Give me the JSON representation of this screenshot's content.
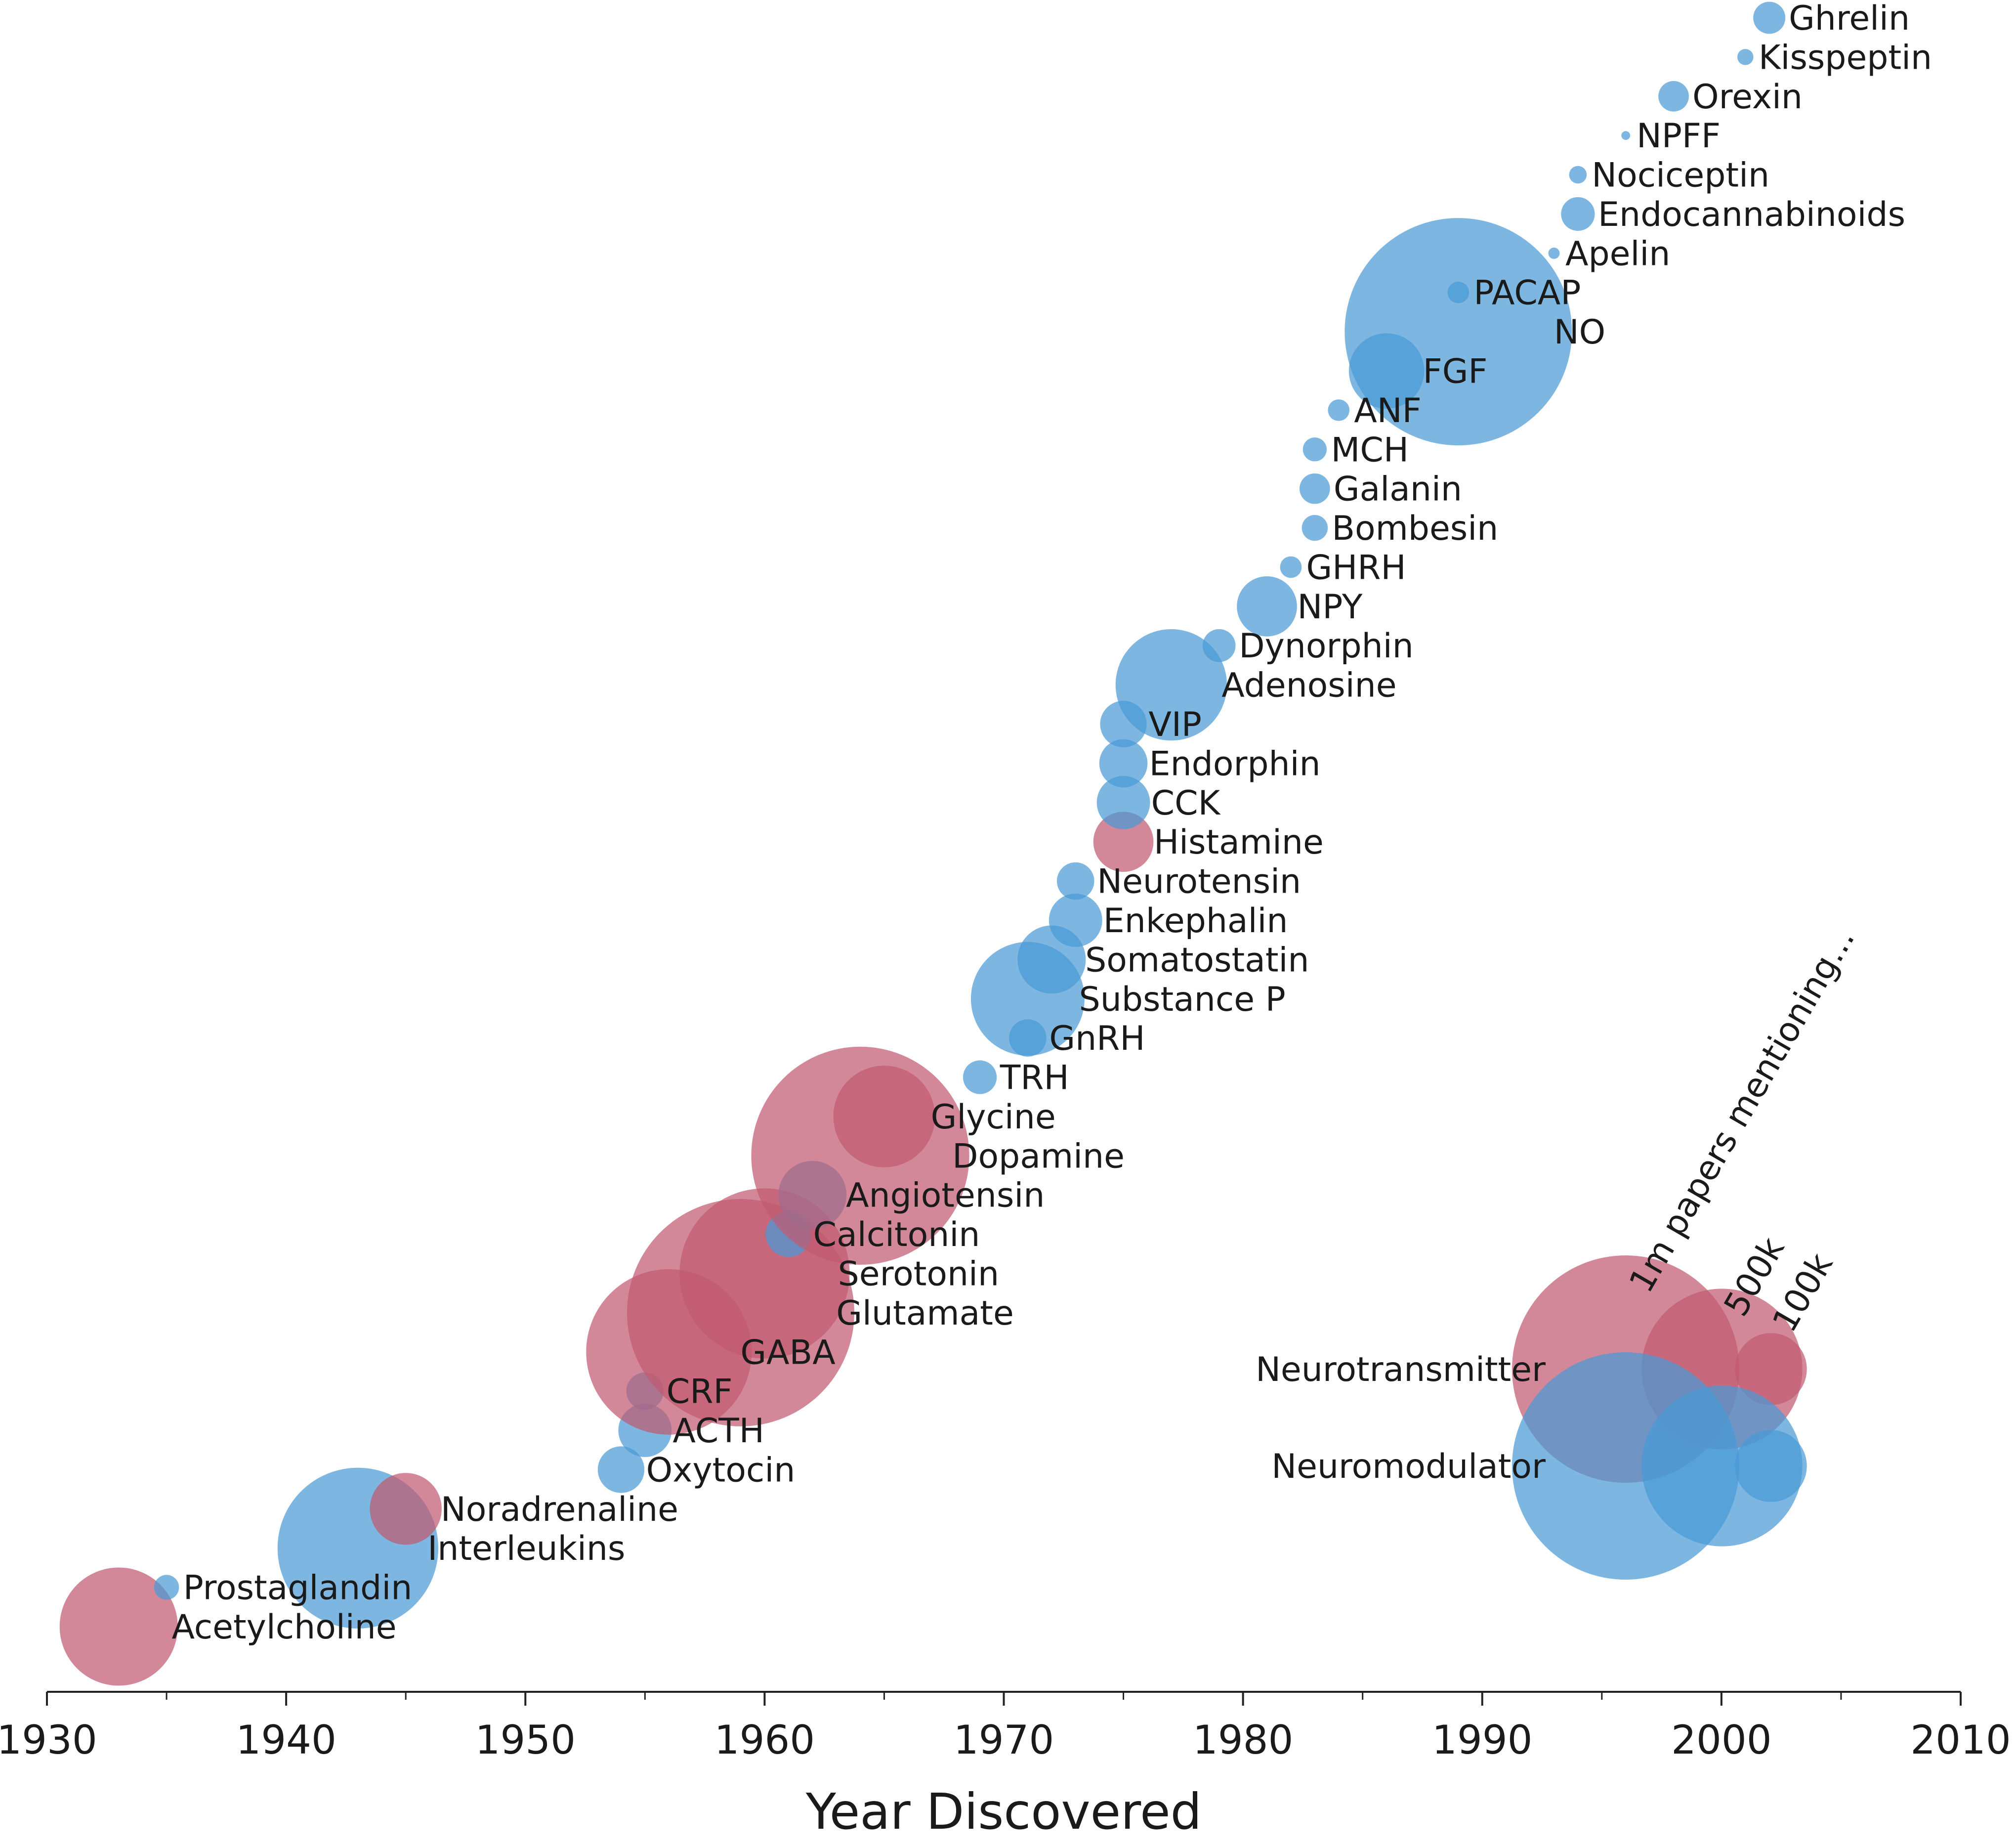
{
  "colors": {
    "neurotransmitter": "#c05a70",
    "neuromodulator": "#4a9ad6",
    "axis": "#222222"
  },
  "chart_data": {
    "type": "scatter",
    "xlabel": "Year Discovered",
    "ylabel": "",
    "xlim": [
      1930,
      2010
    ],
    "x_ticks": [
      "1930",
      "1940",
      "1950",
      "1960",
      "1970",
      "1980",
      "1990",
      "2000",
      "2010"
    ],
    "size_encoding": "papers mentioning each substance",
    "grid": false,
    "points": [
      {
        "name": "Acetylcholine",
        "year": 1933,
        "type": "Neurotransmitter",
        "papers": 270000
      },
      {
        "name": "Prostaglandin",
        "year": 1935,
        "type": "Neuromodulator",
        "papers": 12000
      },
      {
        "name": "Interleukins",
        "year": 1943,
        "type": "Neuromodulator",
        "papers": 500000
      },
      {
        "name": "Noradrenaline",
        "year": 1945,
        "type": "Neurotransmitter",
        "papers": 100000
      },
      {
        "name": "Oxytocin",
        "year": 1954,
        "type": "Neuromodulator",
        "papers": 42000
      },
      {
        "name": "ACTH",
        "year": 1955,
        "type": "Neuromodulator",
        "papers": 55000
      },
      {
        "name": "CRF",
        "year": 1955,
        "type": "Neuromodulator",
        "papers": 27000
      },
      {
        "name": "GABA",
        "year": 1956,
        "type": "Neurotransmitter",
        "papers": 530000
      },
      {
        "name": "Glutamate",
        "year": 1959,
        "type": "Neurotransmitter",
        "papers": 1000000
      },
      {
        "name": "Serotonin",
        "year": 1960,
        "type": "Neurotransmitter",
        "papers": 560000
      },
      {
        "name": "Calcitonin",
        "year": 1961,
        "type": "Neuromodulator",
        "papers": 40000
      },
      {
        "name": "Angiotensin",
        "year": 1962,
        "type": "Neuromodulator",
        "papers": 90000
      },
      {
        "name": "Dopamine",
        "year": 1964,
        "type": "Neurotransmitter",
        "papers": 920000
      },
      {
        "name": "Glycine",
        "year": 1965,
        "type": "Neurotransmitter",
        "papers": 200000
      },
      {
        "name": "TRH",
        "year": 1969,
        "type": "Neuromodulator",
        "papers": 22000
      },
      {
        "name": "GnRH",
        "year": 1971,
        "type": "Neuromodulator",
        "papers": 27000
      },
      {
        "name": "Substance P",
        "year": 1971,
        "type": "Neuromodulator",
        "papers": 250000
      },
      {
        "name": "Somatostatin",
        "year": 1972,
        "type": "Neuromodulator",
        "papers": 90000
      },
      {
        "name": "Enkephalin",
        "year": 1973,
        "type": "Neuromodulator",
        "papers": 55000
      },
      {
        "name": "Neurotensin",
        "year": 1973,
        "type": "Neuromodulator",
        "papers": 27000
      },
      {
        "name": "Histamine",
        "year": 1975,
        "type": "Neurotransmitter",
        "papers": 70000
      },
      {
        "name": "CCK",
        "year": 1975,
        "type": "Neuromodulator",
        "papers": 55000
      },
      {
        "name": "Endorphin",
        "year": 1975,
        "type": "Neuromodulator",
        "papers": 45000
      },
      {
        "name": "VIP",
        "year": 1975,
        "type": "Neuromodulator",
        "papers": 42000
      },
      {
        "name": "Adenosine",
        "year": 1977,
        "type": "Neuromodulator",
        "papers": 240000
      },
      {
        "name": "Dynorphin",
        "year": 1979,
        "type": "Neuromodulator",
        "papers": 21000
      },
      {
        "name": "NPY",
        "year": 1981,
        "type": "Neuromodulator",
        "papers": 70000
      },
      {
        "name": "GHRH",
        "year": 1982,
        "type": "Neuromodulator",
        "papers": 9000
      },
      {
        "name": "Bombesin",
        "year": 1983,
        "type": "Neuromodulator",
        "papers": 13000
      },
      {
        "name": "Galanin",
        "year": 1983,
        "type": "Neuromodulator",
        "papers": 18000
      },
      {
        "name": "MCH",
        "year": 1983,
        "type": "Neuromodulator",
        "papers": 11000
      },
      {
        "name": "ANF",
        "year": 1984,
        "type": "Neuromodulator",
        "papers": 9000
      },
      {
        "name": "FGF",
        "year": 1986,
        "type": "Neuromodulator",
        "papers": 110000
      },
      {
        "name": "NO",
        "year": 1989,
        "type": "Neuromodulator",
        "papers": 1000000
      },
      {
        "name": "PACAP",
        "year": 1989,
        "type": "Neuromodulator",
        "papers": 9000
      },
      {
        "name": "Apelin",
        "year": 1993,
        "type": "Neuromodulator",
        "papers": 2500
      },
      {
        "name": "Endocannabinoids",
        "year": 1994,
        "type": "Neuromodulator",
        "papers": 22000
      },
      {
        "name": "Nociceptin",
        "year": 1994,
        "type": "Neuromodulator",
        "papers": 6000
      },
      {
        "name": "NPFF",
        "year": 1996,
        "type": "Neuromodulator",
        "papers": 1500
      },
      {
        "name": "Orexin",
        "year": 1998,
        "type": "Neuromodulator",
        "papers": 18000
      },
      {
        "name": "Kisspeptin",
        "year": 2001,
        "type": "Neuromodulator",
        "papers": 5000
      },
      {
        "name": "Ghrelin",
        "year": 2002,
        "type": "Neuromodulator",
        "papers": 20000
      }
    ],
    "legend": {
      "placement": "bottom-right",
      "title": "papers mentioning...",
      "sizes": [
        {
          "label": "1m",
          "papers": 1000000
        },
        {
          "label": "500k",
          "papers": 500000
        },
        {
          "label": "100k",
          "papers": 100000
        }
      ],
      "rows": [
        {
          "label": "Neurotransmitter",
          "type": "Neurotransmitter"
        },
        {
          "label": "Neuromodulator",
          "type": "Neuromodulator"
        }
      ]
    }
  }
}
